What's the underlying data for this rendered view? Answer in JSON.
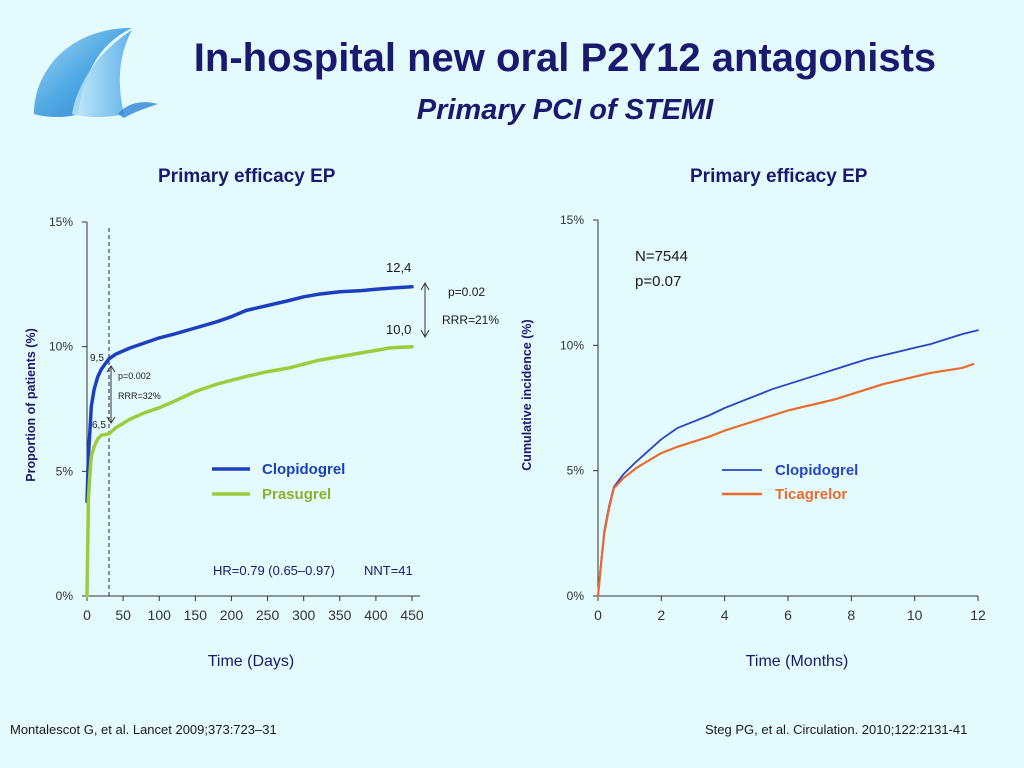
{
  "slide": {
    "title": "In-hospital new oral P2Y12 antagonists",
    "subtitle": "Primary PCI of STEMI",
    "ref_left": "Montalescot G, et al. Lancet 2009;373:723–31",
    "ref_right": "Steg PG, et al. Circulation. 2010;122:2131-41"
  },
  "colors": {
    "title": "#1b1870",
    "clopidogrel_left": "#1c3fbf",
    "prasugrel": "#9ccc3c",
    "clopidogrel_right": "#2a44c4",
    "ticagrelor": "#ec6a2e",
    "background": "#e3fbfc"
  },
  "chart_data": [
    {
      "type": "line",
      "title": "Primary efficacy EP",
      "xlabel": "Time (Days)",
      "ylabel": "Proportion of patients (%)",
      "xlim": [
        0,
        450
      ],
      "ylim": [
        0,
        15
      ],
      "x_ticks": [
        "0",
        "50",
        "100",
        "150",
        "200",
        "250",
        "300",
        "350",
        "400",
        "450"
      ],
      "y_ticks": [
        "0%",
        "5%",
        "10%",
        "15%"
      ],
      "legend_position": "center-right",
      "series": [
        {
          "name": "Clopidogrel",
          "color": "#1c3fbf",
          "x": [
            0,
            2,
            4,
            6,
            10,
            15,
            20,
            30,
            40,
            60,
            80,
            100,
            120,
            150,
            180,
            200,
            220,
            250,
            280,
            300,
            320,
            350,
            380,
            400,
            420,
            450
          ],
          "y": [
            3.8,
            5.6,
            6.6,
            7.6,
            8.3,
            8.8,
            9.1,
            9.5,
            9.7,
            9.95,
            10.15,
            10.35,
            10.5,
            10.75,
            11.0,
            11.2,
            11.45,
            11.65,
            11.85,
            12.0,
            12.1,
            12.2,
            12.25,
            12.3,
            12.35,
            12.4
          ]
        },
        {
          "name": "Prasugrel",
          "color": "#9ccc3c",
          "x": [
            0,
            2,
            4,
            6,
            10,
            15,
            20,
            30,
            40,
            60,
            80,
            100,
            120,
            150,
            180,
            200,
            220,
            250,
            280,
            300,
            320,
            350,
            380,
            400,
            420,
            450
          ],
          "y": [
            0,
            3.9,
            4.9,
            5.6,
            6.0,
            6.3,
            6.45,
            6.5,
            6.75,
            7.1,
            7.35,
            7.55,
            7.8,
            8.2,
            8.5,
            8.65,
            8.8,
            9.0,
            9.15,
            9.3,
            9.45,
            9.6,
            9.75,
            9.85,
            9.95,
            10.0
          ]
        }
      ],
      "annotations": {
        "day30_clopidogrel": "9,5",
        "day30_prasugrel": "6,5",
        "day30_p": "p=0.002",
        "day30_rrr": "RRR=32%",
        "end_clopidogrel": "12,4",
        "end_prasugrel": "10,0",
        "end_p": "p=0.02",
        "end_rrr": "RRR=21%",
        "hr": "HR=0.79 (0.65–0.97)",
        "nnt": "NNT=41"
      }
    },
    {
      "type": "line",
      "title": "Primary efficacy EP",
      "xlabel": "Time (Months)",
      "ylabel": "Cumulative incidence (%)",
      "xlim": [
        0,
        12
      ],
      "ylim": [
        0,
        15
      ],
      "x_ticks": [
        "0",
        "2",
        "4",
        "6",
        "8",
        "10",
        "12"
      ],
      "y_ticks": [
        "0%",
        "5%",
        "10%",
        "15%"
      ],
      "legend_position": "center-right",
      "series": [
        {
          "name": "Clopidogrel",
          "color": "#2a44c4",
          "x": [
            0,
            0.1,
            0.2,
            0.35,
            0.5,
            0.8,
            1.2,
            1.6,
            2.0,
            2.5,
            3.0,
            3.5,
            4.0,
            4.5,
            5.0,
            5.5,
            6.0,
            6.5,
            7.0,
            7.5,
            8.0,
            8.5,
            9.0,
            9.5,
            10.0,
            10.5,
            11.0,
            11.5,
            12.0
          ],
          "y": [
            0,
            1.4,
            2.6,
            3.6,
            4.35,
            4.85,
            5.35,
            5.8,
            6.25,
            6.7,
            6.95,
            7.2,
            7.5,
            7.75,
            8.0,
            8.25,
            8.45,
            8.65,
            8.85,
            9.05,
            9.25,
            9.45,
            9.6,
            9.75,
            9.9,
            10.05,
            10.25,
            10.45,
            10.6
          ]
        },
        {
          "name": "Ticagrelor",
          "color": "#ec6a2e",
          "x": [
            0,
            0.1,
            0.2,
            0.35,
            0.5,
            0.8,
            1.2,
            1.6,
            2.0,
            2.5,
            3.0,
            3.5,
            4.0,
            4.5,
            5.0,
            5.5,
            6.0,
            6.5,
            7.0,
            7.5,
            8.0,
            8.5,
            9.0,
            9.5,
            10.0,
            10.5,
            11.0,
            11.5,
            11.85
          ],
          "y": [
            0,
            1.3,
            2.5,
            3.5,
            4.3,
            4.7,
            5.1,
            5.4,
            5.7,
            5.95,
            6.15,
            6.35,
            6.6,
            6.8,
            7.0,
            7.2,
            7.4,
            7.55,
            7.7,
            7.85,
            8.05,
            8.25,
            8.45,
            8.6,
            8.75,
            8.9,
            9.0,
            9.1,
            9.25
          ]
        }
      ],
      "annotations": {
        "n": "N=7544",
        "p": "p=0.07"
      }
    }
  ]
}
